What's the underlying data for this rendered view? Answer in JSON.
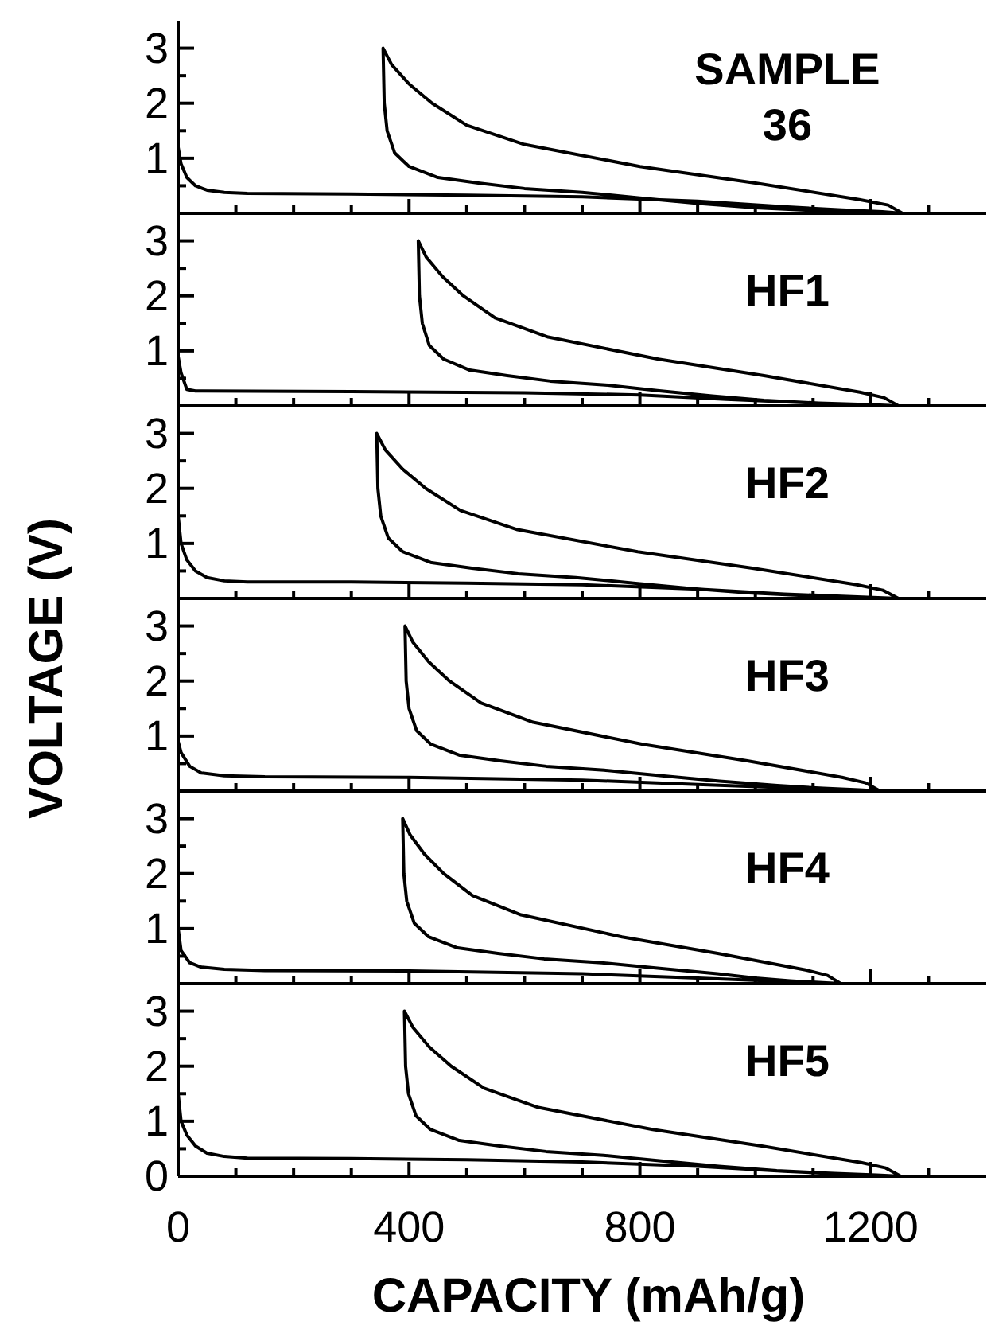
{
  "chart_data": [
    {
      "type": "line",
      "annotations": [
        "SAMPLE 36"
      ],
      "xlim": [
        0,
        1400
      ],
      "ylim": [
        0,
        3.5
      ],
      "tick_labels": "y",
      "xticks": [
        0,
        {
          "value": 100,
          "label": null
        },
        {
          "value": 200,
          "label": null
        },
        {
          "value": 300,
          "label": null
        },
        400,
        {
          "value": 500,
          "label": null
        },
        {
          "value": 600,
          "label": null
        },
        {
          "value": 700,
          "label": null
        },
        800,
        {
          "value": 900,
          "label": null
        },
        {
          "value": 1000,
          "label": null
        },
        {
          "value": 1100,
          "label": null
        },
        1200,
        {
          "value": 1300,
          "label": null
        }
      ],
      "yticks": [
        {
          "value": 0,
          "label": null
        },
        {
          "value": 0.5,
          "label": null
        },
        1,
        {
          "value": 1.5,
          "label": null
        },
        2,
        {
          "value": 2.5,
          "label": null
        },
        3
      ],
      "series": [
        {
          "color": "#000000",
          "x": [
            0,
            5,
            15,
            30,
            50,
            80,
            120,
            300,
            500,
            700,
            900,
            1050,
            1150,
            1220,
            1255,
            1230,
            1180,
            1000,
            800,
            600,
            500,
            440,
            400,
            370,
            355,
            357,
            362,
            375,
            400,
            450,
            520,
            600,
            700,
            800,
            900,
            1000,
            1100,
            1200,
            1250
          ],
          "values": [
            1.2,
            0.9,
            0.65,
            0.5,
            0.42,
            0.38,
            0.36,
            0.35,
            0.33,
            0.3,
            0.22,
            0.12,
            0.06,
            0.03,
            0.0,
            0.15,
            0.25,
            0.55,
            0.85,
            1.25,
            1.6,
            2.0,
            2.35,
            2.7,
            3.0,
            2.0,
            1.5,
            1.1,
            0.85,
            0.65,
            0.55,
            0.45,
            0.38,
            0.28,
            0.18,
            0.1,
            0.05,
            0.02,
            0.0
          ]
        }
      ]
    },
    {
      "type": "line",
      "annotations": [
        "HF1"
      ],
      "xlim": [
        0,
        1400
      ],
      "ylim": [
        0,
        3.5
      ],
      "tick_labels": "y",
      "xticks": [
        0,
        {
          "value": 100,
          "label": null
        },
        {
          "value": 200,
          "label": null
        },
        {
          "value": 300,
          "label": null
        },
        400,
        {
          "value": 500,
          "label": null
        },
        {
          "value": 600,
          "label": null
        },
        {
          "value": 700,
          "label": null
        },
        800,
        {
          "value": 900,
          "label": null
        },
        {
          "value": 1000,
          "label": null
        },
        {
          "value": 1100,
          "label": null
        },
        1200,
        {
          "value": 1300,
          "label": null
        }
      ],
      "yticks": [
        {
          "value": 0,
          "label": null
        },
        {
          "value": 0.5,
          "label": null
        },
        1,
        {
          "value": 1.5,
          "label": null
        },
        2,
        {
          "value": 2.5,
          "label": null
        },
        3
      ],
      "series": [
        {
          "color": "#000000",
          "x": [
            0,
            5,
            15,
            30,
            300,
            600,
            800,
            950,
            1100,
            1200,
            1248,
            1223,
            1181,
            1015,
            832,
            641,
            549,
            494,
            458,
            430,
            416,
            418,
            423,
            435,
            460,
            505,
            570,
            645,
            740,
            830,
            925,
            1015,
            1110,
            1200,
            1248
          ],
          "values": [
            0.9,
            0.6,
            0.3,
            0.27,
            0.26,
            0.24,
            0.2,
            0.12,
            0.05,
            0.02,
            0.0,
            0.15,
            0.25,
            0.55,
            0.85,
            1.25,
            1.6,
            2.0,
            2.35,
            2.7,
            3.0,
            2.0,
            1.5,
            1.1,
            0.85,
            0.65,
            0.55,
            0.45,
            0.38,
            0.28,
            0.18,
            0.1,
            0.05,
            0.02,
            0.0
          ]
        }
      ]
    },
    {
      "type": "line",
      "annotations": [
        "HF2"
      ],
      "ylabel": "VOLTAGE (V)",
      "xlim": [
        0,
        1400
      ],
      "ylim": [
        0,
        3.5
      ],
      "tick_labels": "y",
      "xticks": [
        0,
        {
          "value": 100,
          "label": null
        },
        {
          "value": 200,
          "label": null
        },
        {
          "value": 300,
          "label": null
        },
        400,
        {
          "value": 500,
          "label": null
        },
        {
          "value": 600,
          "label": null
        },
        {
          "value": 700,
          "label": null
        },
        800,
        {
          "value": 900,
          "label": null
        },
        {
          "value": 1000,
          "label": null
        },
        {
          "value": 1100,
          "label": null
        },
        1200,
        {
          "value": 1300,
          "label": null
        }
      ],
      "yticks": [
        {
          "value": 0,
          "label": null
        },
        {
          "value": 0.5,
          "label": null
        },
        1,
        {
          "value": 1.5,
          "label": null
        },
        2,
        {
          "value": 2.5,
          "label": null
        },
        3
      ],
      "series": [
        {
          "color": "#000000",
          "x": [
            0,
            5,
            15,
            30,
            50,
            80,
            120,
            300,
            500,
            700,
            900,
            1050,
            1150,
            1248,
            1221,
            1176,
            995,
            796,
            588,
            489,
            429,
            389,
            359,
            344,
            346,
            351,
            364,
            389,
            439,
            509,
            589,
            689,
            789,
            889,
            989,
            1089,
            1189,
            1248
          ],
          "values": [
            1.5,
            1.0,
            0.7,
            0.5,
            0.38,
            0.32,
            0.3,
            0.3,
            0.28,
            0.25,
            0.17,
            0.08,
            0.04,
            0.0,
            0.15,
            0.25,
            0.55,
            0.85,
            1.25,
            1.6,
            2.0,
            2.35,
            2.7,
            3.0,
            2.0,
            1.5,
            1.1,
            0.85,
            0.65,
            0.55,
            0.45,
            0.38,
            0.28,
            0.18,
            0.1,
            0.05,
            0.02,
            0.0
          ]
        }
      ]
    },
    {
      "type": "line",
      "annotations": [
        "HF3"
      ],
      "xlim": [
        0,
        1400
      ],
      "ylim": [
        0,
        3.5
      ],
      "tick_labels": "y",
      "xticks": [
        0,
        {
          "value": 100,
          "label": null
        },
        {
          "value": 200,
          "label": null
        },
        {
          "value": 300,
          "label": null
        },
        400,
        {
          "value": 500,
          "label": null
        },
        {
          "value": 600,
          "label": null
        },
        {
          "value": 700,
          "label": null
        },
        800,
        {
          "value": 900,
          "label": null
        },
        {
          "value": 1000,
          "label": null
        },
        {
          "value": 1100,
          "label": null
        },
        1200,
        {
          "value": 1300,
          "label": null
        }
      ],
      "yticks": [
        {
          "value": 0,
          "label": null
        },
        {
          "value": 0.5,
          "label": null
        },
        1,
        {
          "value": 1.5,
          "label": null
        },
        2,
        {
          "value": 2.5,
          "label": null
        },
        3
      ],
      "series": [
        {
          "color": "#000000",
          "x": [
            0,
            5,
            20,
            40,
            80,
            150,
            400,
            700,
            900,
            1050,
            1150,
            1216,
            1191,
            1150,
            986,
            805,
            615,
            525,
            470,
            434,
            407,
            393,
            395,
            400,
            413,
            438,
            488,
            558,
            638,
            738,
            838,
            938,
            1038,
            1118,
            1180,
            1216
          ],
          "values": [
            0.9,
            0.7,
            0.45,
            0.33,
            0.28,
            0.26,
            0.25,
            0.2,
            0.12,
            0.06,
            0.03,
            0.0,
            0.15,
            0.25,
            0.55,
            0.85,
            1.25,
            1.6,
            2.0,
            2.35,
            2.7,
            3.0,
            2.0,
            1.5,
            1.1,
            0.85,
            0.65,
            0.55,
            0.45,
            0.38,
            0.28,
            0.18,
            0.1,
            0.05,
            0.02,
            0.0
          ]
        }
      ]
    },
    {
      "type": "line",
      "annotations": [
        "HF4"
      ],
      "xlim": [
        0,
        1400
      ],
      "ylim": [
        0,
        3.5
      ],
      "tick_labels": "y",
      "xticks": [
        0,
        {
          "value": 100,
          "label": null
        },
        {
          "value": 200,
          "label": null
        },
        {
          "value": 300,
          "label": null
        },
        400,
        {
          "value": 500,
          "label": null
        },
        {
          "value": 600,
          "label": null
        },
        {
          "value": 700,
          "label": null
        },
        800,
        {
          "value": 900,
          "label": null
        },
        {
          "value": 1000,
          "label": null
        },
        {
          "value": 1100,
          "label": null
        },
        1200,
        {
          "value": 1300,
          "label": null
        }
      ],
      "yticks": [
        {
          "value": 0,
          "label": null
        },
        {
          "value": 0.5,
          "label": null
        },
        1,
        {
          "value": 1.5,
          "label": null
        },
        2,
        {
          "value": 2.5,
          "label": null
        },
        3
      ],
      "series": [
        {
          "color": "#000000",
          "x": [
            0,
            5,
            20,
            40,
            80,
            150,
            400,
            700,
            900,
            1050,
            1148,
            1125,
            1087,
            935,
            769,
            594,
            510,
            460,
            427,
            402,
            389,
            391,
            396,
            409,
            434,
            484,
            554,
            634,
            734,
            834,
            934,
            1000,
            1060,
            1110,
            1148
          ],
          "values": [
            1.0,
            0.6,
            0.38,
            0.3,
            0.26,
            0.24,
            0.23,
            0.18,
            0.1,
            0.04,
            0.0,
            0.15,
            0.25,
            0.55,
            0.85,
            1.25,
            1.6,
            2.0,
            2.35,
            2.7,
            3.0,
            2.0,
            1.5,
            1.1,
            0.85,
            0.65,
            0.55,
            0.45,
            0.38,
            0.28,
            0.18,
            0.1,
            0.05,
            0.02,
            0.0
          ]
        }
      ]
    },
    {
      "type": "line",
      "annotations": [
        "HF5"
      ],
      "xlabel": "CAPACITY (mAh/g)",
      "xlim": [
        0,
        1400
      ],
      "ylim": [
        0,
        3.5
      ],
      "xticks": [
        0,
        {
          "value": 100,
          "label": null
        },
        {
          "value": 200,
          "label": null
        },
        {
          "value": 300,
          "label": null
        },
        400,
        {
          "value": 500,
          "label": null
        },
        {
          "value": 600,
          "label": null
        },
        {
          "value": 700,
          "label": null
        },
        800,
        {
          "value": 900,
          "label": null
        },
        {
          "value": 1000,
          "label": null
        },
        {
          "value": 1100,
          "label": null
        },
        1200,
        {
          "value": 1300,
          "label": null
        }
      ],
      "yticks": [
        0,
        {
          "value": 0.5,
          "label": null
        },
        1,
        {
          "value": 1.5,
          "label": null
        },
        2,
        {
          "value": 2.5,
          "label": null
        },
        3
      ],
      "series": [
        {
          "color": "#000000",
          "x": [
            0,
            5,
            15,
            30,
            50,
            80,
            120,
            300,
            500,
            700,
            900,
            1050,
            1150,
            1252,
            1226,
            1183,
            1011,
            822,
            624,
            530,
            473,
            435,
            407,
            392,
            394,
            399,
            412,
            437,
            487,
            557,
            637,
            737,
            837,
            937,
            1037,
            1137,
            1210,
            1252
          ],
          "values": [
            1.5,
            1.0,
            0.75,
            0.55,
            0.42,
            0.36,
            0.33,
            0.32,
            0.3,
            0.26,
            0.18,
            0.09,
            0.04,
            0.0,
            0.15,
            0.25,
            0.55,
            0.85,
            1.25,
            1.6,
            2.0,
            2.35,
            2.7,
            3.0,
            2.0,
            1.5,
            1.1,
            0.85,
            0.65,
            0.55,
            0.45,
            0.38,
            0.28,
            0.18,
            0.1,
            0.05,
            0.02,
            0.0
          ]
        }
      ]
    }
  ]
}
